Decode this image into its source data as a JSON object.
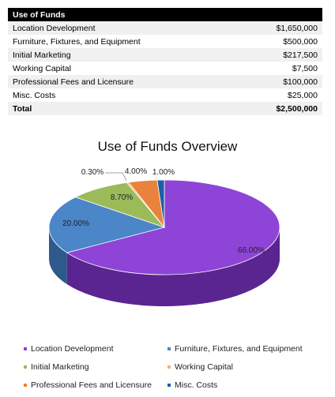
{
  "table": {
    "header": "Use of Funds",
    "rows": [
      {
        "label": "Location Development",
        "amount": "$1,650,000"
      },
      {
        "label": "Furniture, Fixtures, and Equipment",
        "amount": "$500,000"
      },
      {
        "label": "Initial Marketing",
        "amount": "$217,500"
      },
      {
        "label": "Working Capital",
        "amount": "$7,500"
      },
      {
        "label": "Professional Fees and Licensure",
        "amount": "$100,000"
      },
      {
        "label": "Misc. Costs",
        "amount": "$25,000"
      }
    ],
    "total": {
      "label": "Total",
      "amount": "$2,500,000"
    }
  },
  "chart_data": {
    "type": "pie",
    "title": "Use of Funds Overview",
    "categories": [
      "Location Development",
      "Furniture, Fixtures, and Equipment",
      "Initial Marketing",
      "Working Capital",
      "Professional Fees and Licensure",
      "Misc. Costs"
    ],
    "values": [
      66.0,
      20.0,
      8.7,
      0.3,
      4.0,
      1.0
    ],
    "labels": [
      "66.00%",
      "20.00%",
      "8.70%",
      "0.30%",
      "4.00%",
      "1.00%"
    ],
    "colors": [
      "#8e44d6",
      "#4a86c8",
      "#9bbb59",
      "#f6b26b",
      "#e8823c",
      "#1f5ea8"
    ],
    "side_colors": [
      "#5a2590",
      "#2d5a8a",
      "#6a8a38",
      "#c88a40",
      "#b05a20",
      "#123e70"
    ],
    "legend_position": "bottom"
  }
}
